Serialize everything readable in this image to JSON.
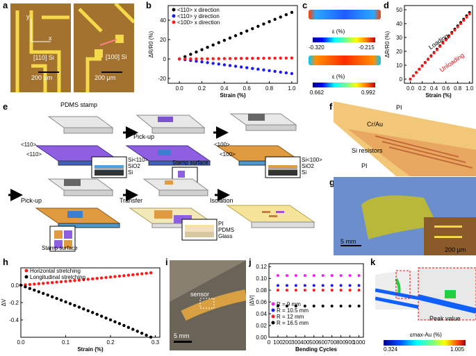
{
  "panels": {
    "a": {
      "letter": "a",
      "y_label": "y",
      "x_label": "x",
      "left_label": "[110] Si",
      "right_label": "[100] Si",
      "scale": "200 μm"
    },
    "b": {
      "letter": "b",
      "ylabel": "ΔR/R0 (%)",
      "xlabel": "Strain (%)"
    },
    "c": {
      "letter": "c",
      "cb_title": "ε (%)",
      "cb1_min": "-0.320",
      "cb1_max": "-0.215",
      "cb2_min": "0.662",
      "cb2_max": "0.992"
    },
    "d": {
      "letter": "d",
      "ylabel": "ΔR/R0 (%)",
      "xlabel": "Strain (%)",
      "loading": "Loading",
      "unloading": "Unloading"
    },
    "e": {
      "letter": "e",
      "stamp": "PDMS stamp",
      "pickup1": "Pick-up",
      "pickup2": "Pick-up",
      "transfer": "Transfer",
      "isolation": "Isolation",
      "stamp_surface1": "Stamp surface",
      "stamp_surface2": "Stamp surface",
      "si110": "Si<110>",
      "sio2a": "SiO2",
      "si_a": "Si",
      "si100": "Si<100>",
      "sio2b": "SiO2",
      "si_b": "Si",
      "pi": "PI",
      "pdms": "PDMS",
      "glass": "Glass",
      "dir1a": "<110>",
      "dir1b": "<110>",
      "dir2a": "<100>",
      "dir2b": "<100>"
    },
    "f": {
      "letter": "f",
      "pi_top": "PI",
      "crau": "Cr/Au",
      "si_res": "Si resistors",
      "pi_bot": "PI"
    },
    "g": {
      "letter": "g",
      "scale1": "5 mm",
      "scale2": "200 μm"
    },
    "h": {
      "letter": "h",
      "ylabel": "ΔV",
      "xlabel": "Strain (%)"
    },
    "i": {
      "letter": "i",
      "sensor": "sensor",
      "scale": "5 mm"
    },
    "j": {
      "letter": "j",
      "ylabel": "|ΔV|",
      "xlabel": "Bending Cycles"
    },
    "k": {
      "letter": "k",
      "peak": "Peak value",
      "cb_title": "εmax-Au (%)",
      "cb_min": "0.324",
      "cb_max": "1.005"
    }
  },
  "chart_data": [
    {
      "id": "b",
      "type": "scatter",
      "xlabel": "Strain (%)",
      "ylabel": "ΔR/R0 (%)",
      "xlim": [
        -0.1,
        1.05
      ],
      "ylim": [
        -25,
        55
      ],
      "xticks": [
        "0.0",
        "0.2",
        "0.4",
        "0.6",
        "0.8",
        "1.0"
      ],
      "yticks": [
        "-20",
        "0",
        "20",
        "40"
      ],
      "legend": "top-left",
      "series": [
        {
          "name": "<110> x direction",
          "color": "#000000",
          "slope": 48
        },
        {
          "name": "<110> y direction",
          "color": "#1a1aff",
          "slope": -15
        },
        {
          "name": "<100> x direction",
          "color": "#ff1a1a",
          "slope": 1
        }
      ],
      "x": [
        0,
        0.05,
        0.1,
        0.15,
        0.2,
        0.25,
        0.3,
        0.35,
        0.4,
        0.45,
        0.5,
        0.55,
        0.6,
        0.65,
        0.7,
        0.75,
        0.8,
        0.85,
        0.9,
        0.95,
        1.0
      ]
    },
    {
      "id": "d",
      "type": "scatter",
      "xlabel": "Strain (%)",
      "ylabel": "ΔR/R0 (%)",
      "xlim": [
        -0.1,
        1.05
      ],
      "ylim": [
        -3,
        53
      ],
      "xticks": [
        "0.0",
        "0.2",
        "0.4",
        "0.6",
        "0.8",
        "1.0"
      ],
      "yticks": [
        "0",
        "10",
        "20",
        "30",
        "40",
        "50"
      ],
      "series": [
        {
          "name": "Loading",
          "color": "#000000",
          "slope": 48
        },
        {
          "name": "Unloading",
          "color": "#ff1a1a",
          "slope": 47
        }
      ],
      "x": [
        0,
        0.05,
        0.1,
        0.15,
        0.2,
        0.25,
        0.3,
        0.35,
        0.4,
        0.45,
        0.5,
        0.55,
        0.6,
        0.65,
        0.7,
        0.75,
        0.8,
        0.85,
        0.9,
        0.95,
        1.0
      ]
    },
    {
      "id": "h",
      "type": "scatter",
      "xlabel": "Strain (%)",
      "ylabel": "ΔV",
      "xlim": [
        0,
        0.31
      ],
      "ylim": [
        -0.6,
        0.2
      ],
      "xticks": [
        "0.0",
        "0.1",
        "0.2",
        "0.3"
      ],
      "yticks": [
        "-0.4",
        "-0.2",
        "0.0"
      ],
      "legend": "top-left",
      "series": [
        {
          "name": "Horizontal stretching",
          "color": "#ff1a1a",
          "slope": 0.42
        },
        {
          "name": "Longitudinal stretching",
          "color": "#000000",
          "slope": -1.85
        }
      ],
      "x": [
        0,
        0.01,
        0.02,
        0.03,
        0.04,
        0.05,
        0.06,
        0.07,
        0.08,
        0.09,
        0.1,
        0.11,
        0.12,
        0.13,
        0.14,
        0.15,
        0.16,
        0.17,
        0.18,
        0.19,
        0.2,
        0.21,
        0.22,
        0.23,
        0.24,
        0.25,
        0.26,
        0.27,
        0.28,
        0.29
      ]
    },
    {
      "id": "j",
      "type": "scatter",
      "xlabel": "Bending Cycles",
      "ylabel": "|ΔV|",
      "xlim": [
        0,
        1050
      ],
      "ylim": [
        0,
        0.125
      ],
      "xticks": [
        "0",
        "100",
        "200",
        "300",
        "400",
        "500",
        "600",
        "700",
        "800",
        "900",
        "1000"
      ],
      "yticks": [
        "0.00",
        "0.02",
        "0.04",
        "0.06",
        "0.08",
        "0.10",
        "0.12"
      ],
      "legend": "bottom-left",
      "series": [
        {
          "name": "R = 9 mm",
          "color": "#ff1aff",
          "value": 0.105
        },
        {
          "name": "R = 10.5 mm",
          "color": "#1a1aff",
          "value": 0.088
        },
        {
          "name": "R = 12 mm",
          "color": "#ff1a1a",
          "value": 0.08
        },
        {
          "name": "R = 16.5 mm",
          "color": "#000000",
          "value": 0.053
        }
      ],
      "x": [
        100,
        200,
        300,
        400,
        500,
        600,
        700,
        800,
        900,
        1000
      ]
    }
  ]
}
